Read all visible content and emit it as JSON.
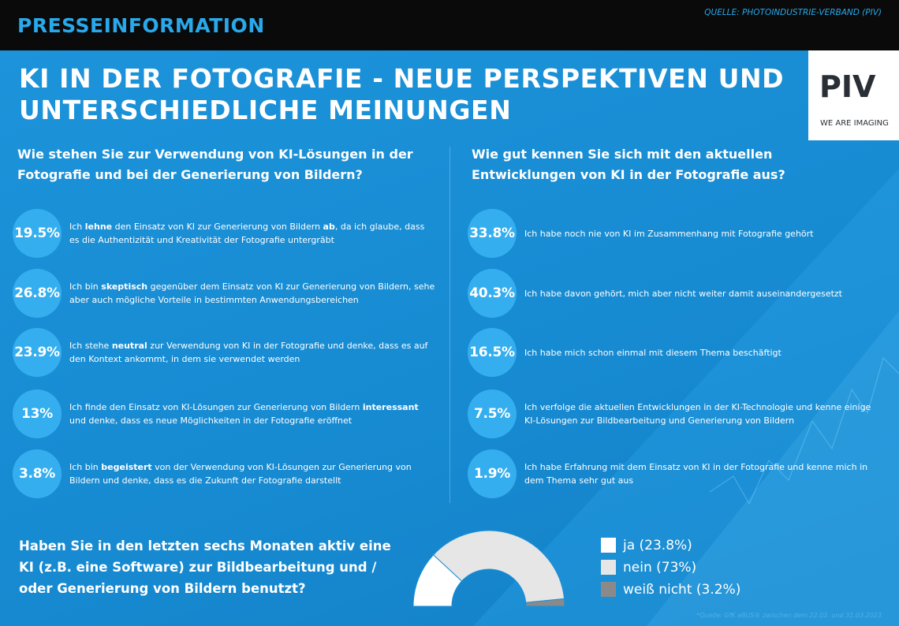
{
  "header": {
    "press_label": "PRESSEINFORMATION",
    "source": "QUELLE: PHOTOINDUSTRIE-VERBAND (PIV)"
  },
  "title": {
    "line1": "KI  IN  DER  FOTOGRAFIE - NEUE PERSPEKTIVEN UND",
    "line2": "UNTERSCHIEDLICHE MEINUNGEN"
  },
  "logo": {
    "mark": "PIV",
    "tagline": "WE ARE IMAGING"
  },
  "colors": {
    "background": "#1b8fd6",
    "circle": "#35aeef",
    "header_bar": "#0a0a0a",
    "accent": "#29a8ea",
    "donut_ja": "#ffffff",
    "donut_nein": "#e6e6e6",
    "donut_weiss_nicht": "#8a8a8a"
  },
  "chart_data": [
    {
      "type": "table",
      "title": "Wie stehen Sie zur Verwendung von KI-Lösungen in der Fotografie und bei der Generierung von Bildern?",
      "rows": [
        {
          "value": "19.5%",
          "pre": "Ich ",
          "bold": "lehne",
          "mid": " den Einsatz von KI zur Generierung von Bildern ",
          "bold2": "ab",
          "post": ", da ich glaube, dass es die Authentizität und Kreativität der Fotografie untergräbt"
        },
        {
          "value": "26.8%",
          "pre": "Ich bin ",
          "bold": "skeptisch",
          "mid": " gegenüber dem Einsatz von KI zur Generierung von Bildern, sehe aber auch mögliche Vorteile in bestimmten Anwendungsbereichen",
          "bold2": "",
          "post": ""
        },
        {
          "value": "23.9%",
          "pre": "Ich stehe ",
          "bold": "neutral",
          "mid": " zur Verwendung von KI in der Fotografie und denke, dass es auf den Kontext ankommt, in dem sie verwendet werden",
          "bold2": "",
          "post": ""
        },
        {
          "value": "13%",
          "pre": "Ich finde den Einsatz von KI-Lösungen zur Generierung von Bildern ",
          "bold": "interessant",
          "mid": " und denke, dass es neue Möglichkeiten in der Fotografie eröffnet",
          "bold2": "",
          "post": ""
        },
        {
          "value": "3.8%",
          "pre": "Ich bin ",
          "bold": "begeistert",
          "mid": " von der Verwendung von KI-Lösungen zur Generierung von Bildern und denke, dass es die Zukunft der Fotografie darstellt",
          "bold2": "",
          "post": ""
        }
      ]
    },
    {
      "type": "table",
      "title": "Wie gut kennen Sie sich mit den aktuellen Entwicklungen von KI in der Fotografie aus?",
      "rows": [
        {
          "value": "33.8%",
          "text": "Ich habe noch nie von KI im Zusammenhang mit Fotografie gehört"
        },
        {
          "value": "40.3%",
          "text": "Ich habe davon gehört, mich aber nicht weiter damit auseinandergesetzt"
        },
        {
          "value": "16.5%",
          "text": "Ich habe mich schon einmal mit diesem Thema beschäftigt"
        },
        {
          "value": "7.5%",
          "text": "Ich verfolge die aktuellen Entwicklungen in der KI-Technologie und kenne einige KI-Lösungen zur Bildbearbeitung und Generierung von Bildern"
        },
        {
          "value": "1.9%",
          "text": "Ich habe Erfahrung mit dem Einsatz von KI in der Fotografie und kenne mich in dem Thema sehr gut aus"
        }
      ]
    },
    {
      "type": "pie",
      "title": "Haben Sie in den letzten sechs Monaten aktiv eine KI (z.B. eine Software) zur Bildbearbeitung und / oder Generierung von Bildern benutzt?",
      "slices": [
        {
          "label": "ja (23.8%)",
          "value": 23.8,
          "color": "#ffffff"
        },
        {
          "label": "nein (73%)",
          "value": 73,
          "color": "#e6e6e6"
        },
        {
          "label": "weiß nicht (3.2%)",
          "value": 3.2,
          "color": "#8a8a8a"
        }
      ],
      "style": "half-donut"
    }
  ],
  "footnote": "*Quelle: GfK eBUS® zwischen dem 22.02. und 31.03.2023"
}
